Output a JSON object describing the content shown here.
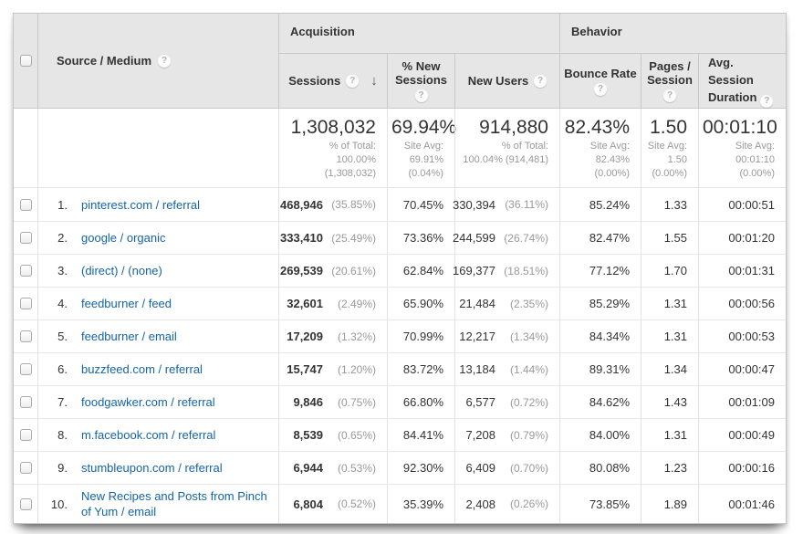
{
  "header": {
    "source_medium_label": "Source / Medium",
    "groups": {
      "acquisition": "Acquisition",
      "behavior": "Behavior"
    },
    "columns": {
      "sessions": "Sessions",
      "pct_new_sessions": "% New Sessions",
      "new_users": "New Users",
      "bounce_rate": "Bounce Rate",
      "pages_session": "Pages / Session",
      "avg_duration_line1": "Avg. Session",
      "avg_duration_line2": "Duration"
    },
    "help_glyph": "?",
    "sort_glyph": "↓"
  },
  "totals": {
    "sessions": {
      "value": "1,308,032",
      "sub": [
        "% of Total:",
        "100.00%",
        "(1,308,032)"
      ]
    },
    "pct_new_sessions": {
      "value": "69.94%",
      "sub": [
        "Site Avg:",
        "69.91%",
        "(0.04%)"
      ]
    },
    "new_users": {
      "value": "914,880",
      "sub": [
        "% of Total:",
        "100.04% (914,481)"
      ]
    },
    "bounce_rate": {
      "value": "82.43%",
      "sub": [
        "Site Avg:",
        "82.43%",
        "(0.00%)"
      ]
    },
    "pages_session": {
      "value": "1.50",
      "sub": [
        "Site Avg:",
        "1.50",
        "(0.00%)"
      ]
    },
    "avg_duration": {
      "value": "00:01:10",
      "sub": [
        "Site Avg:",
        "00:01:10",
        "(0.00%)"
      ]
    }
  },
  "rows": [
    {
      "index": "1.",
      "source": "pinterest.com / referral",
      "sessions": "468,946",
      "sessions_pct": "(35.85%)",
      "new_sessions": "70.45%",
      "new_users": "330,394",
      "new_users_pct": "(36.11%)",
      "bounce": "85.24%",
      "pages": "1.33",
      "duration": "00:00:51"
    },
    {
      "index": "2.",
      "source": "google / organic",
      "sessions": "333,410",
      "sessions_pct": "(25.49%)",
      "new_sessions": "73.36%",
      "new_users": "244,599",
      "new_users_pct": "(26.74%)",
      "bounce": "82.47%",
      "pages": "1.55",
      "duration": "00:01:20"
    },
    {
      "index": "3.",
      "source": "(direct) / (none)",
      "sessions": "269,539",
      "sessions_pct": "(20.61%)",
      "new_sessions": "62.84%",
      "new_users": "169,377",
      "new_users_pct": "(18.51%)",
      "bounce": "77.12%",
      "pages": "1.70",
      "duration": "00:01:31"
    },
    {
      "index": "4.",
      "source": "feedburner / feed",
      "sessions": "32,601",
      "sessions_pct": "(2.49%)",
      "new_sessions": "65.90%",
      "new_users": "21,484",
      "new_users_pct": "(2.35%)",
      "bounce": "85.29%",
      "pages": "1.31",
      "duration": "00:00:56"
    },
    {
      "index": "5.",
      "source": "feedburner / email",
      "sessions": "17,209",
      "sessions_pct": "(1.32%)",
      "new_sessions": "70.99%",
      "new_users": "12,217",
      "new_users_pct": "(1.34%)",
      "bounce": "84.34%",
      "pages": "1.31",
      "duration": "00:00:53"
    },
    {
      "index": "6.",
      "source": "buzzfeed.com / referral",
      "sessions": "15,747",
      "sessions_pct": "(1.20%)",
      "new_sessions": "83.72%",
      "new_users": "13,184",
      "new_users_pct": "(1.44%)",
      "bounce": "89.31%",
      "pages": "1.34",
      "duration": "00:00:47"
    },
    {
      "index": "7.",
      "source": "foodgawker.com / referral",
      "sessions": "9,846",
      "sessions_pct": "(0.75%)",
      "new_sessions": "66.80%",
      "new_users": "6,577",
      "new_users_pct": "(0.72%)",
      "bounce": "84.62%",
      "pages": "1.43",
      "duration": "00:01:09"
    },
    {
      "index": "8.",
      "source": "m.facebook.com / referral",
      "sessions": "8,539",
      "sessions_pct": "(0.65%)",
      "new_sessions": "84.41%",
      "new_users": "7,208",
      "new_users_pct": "(0.79%)",
      "bounce": "84.00%",
      "pages": "1.31",
      "duration": "00:00:49"
    },
    {
      "index": "9.",
      "source": "stumbleupon.com / referral",
      "sessions": "6,944",
      "sessions_pct": "(0.53%)",
      "new_sessions": "92.30%",
      "new_users": "6,409",
      "new_users_pct": "(0.70%)",
      "bounce": "80.08%",
      "pages": "1.23",
      "duration": "00:00:16"
    },
    {
      "index": "10.",
      "source": "New Recipes and Posts from Pinch of Yum / email",
      "sessions": "6,804",
      "sessions_pct": "(0.52%)",
      "new_sessions": "35.39%",
      "new_users": "2,408",
      "new_users_pct": "(0.26%)",
      "bounce": "73.85%",
      "pages": "1.89",
      "duration": "00:01:46"
    }
  ]
}
